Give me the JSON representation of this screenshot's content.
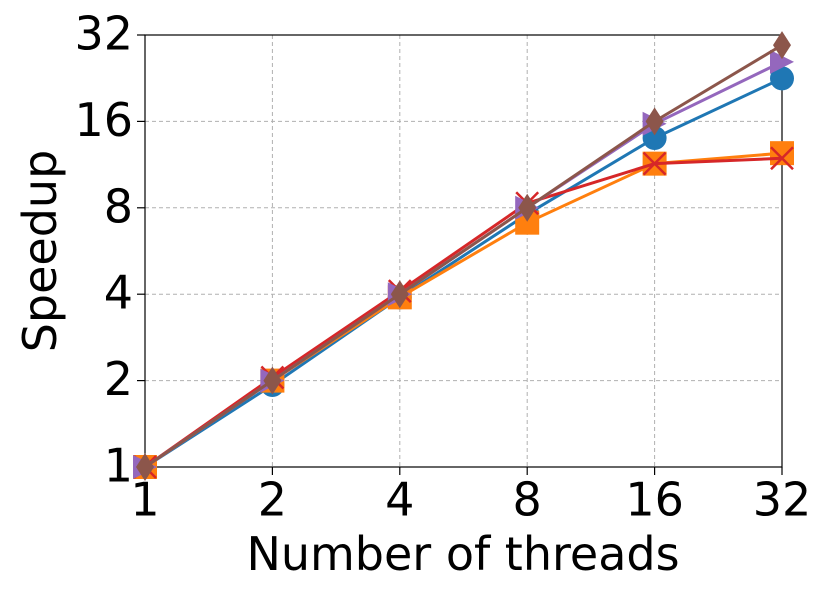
{
  "chart_data": {
    "type": "line",
    "x_label": "Number of threads",
    "y_label": "Speedup",
    "x": [
      1,
      2,
      4,
      8,
      16,
      32
    ],
    "xscale": "log2",
    "yscale": "log2",
    "xlim": [
      1,
      32
    ],
    "ylim": [
      1,
      32
    ],
    "xticks": [
      1,
      2,
      4,
      8,
      16,
      32
    ],
    "yticks": [
      1,
      2,
      4,
      8,
      16,
      32
    ],
    "grid": true,
    "series": [
      {
        "color": "#1f77b4",
        "marker": "circle",
        "values": [
          1,
          1.93,
          3.9,
          7.6,
          14,
          22.6
        ]
      },
      {
        "color": "#ff7f0e",
        "marker": "square",
        "values": [
          1,
          2,
          3.9,
          7.1,
          11.4,
          12.4
        ]
      },
      {
        "color": "#d62728",
        "marker": "x",
        "values": [
          1,
          2.05,
          4.1,
          8.3,
          11.4,
          11.9
        ]
      },
      {
        "color": "#9467bd",
        "marker": "triangle-right",
        "values": [
          1,
          2,
          4,
          8,
          15.7,
          25.8
        ]
      },
      {
        "color": "#8c564b",
        "marker": "diamond",
        "values": [
          1,
          2,
          4,
          8,
          16,
          29.5
        ]
      }
    ]
  }
}
